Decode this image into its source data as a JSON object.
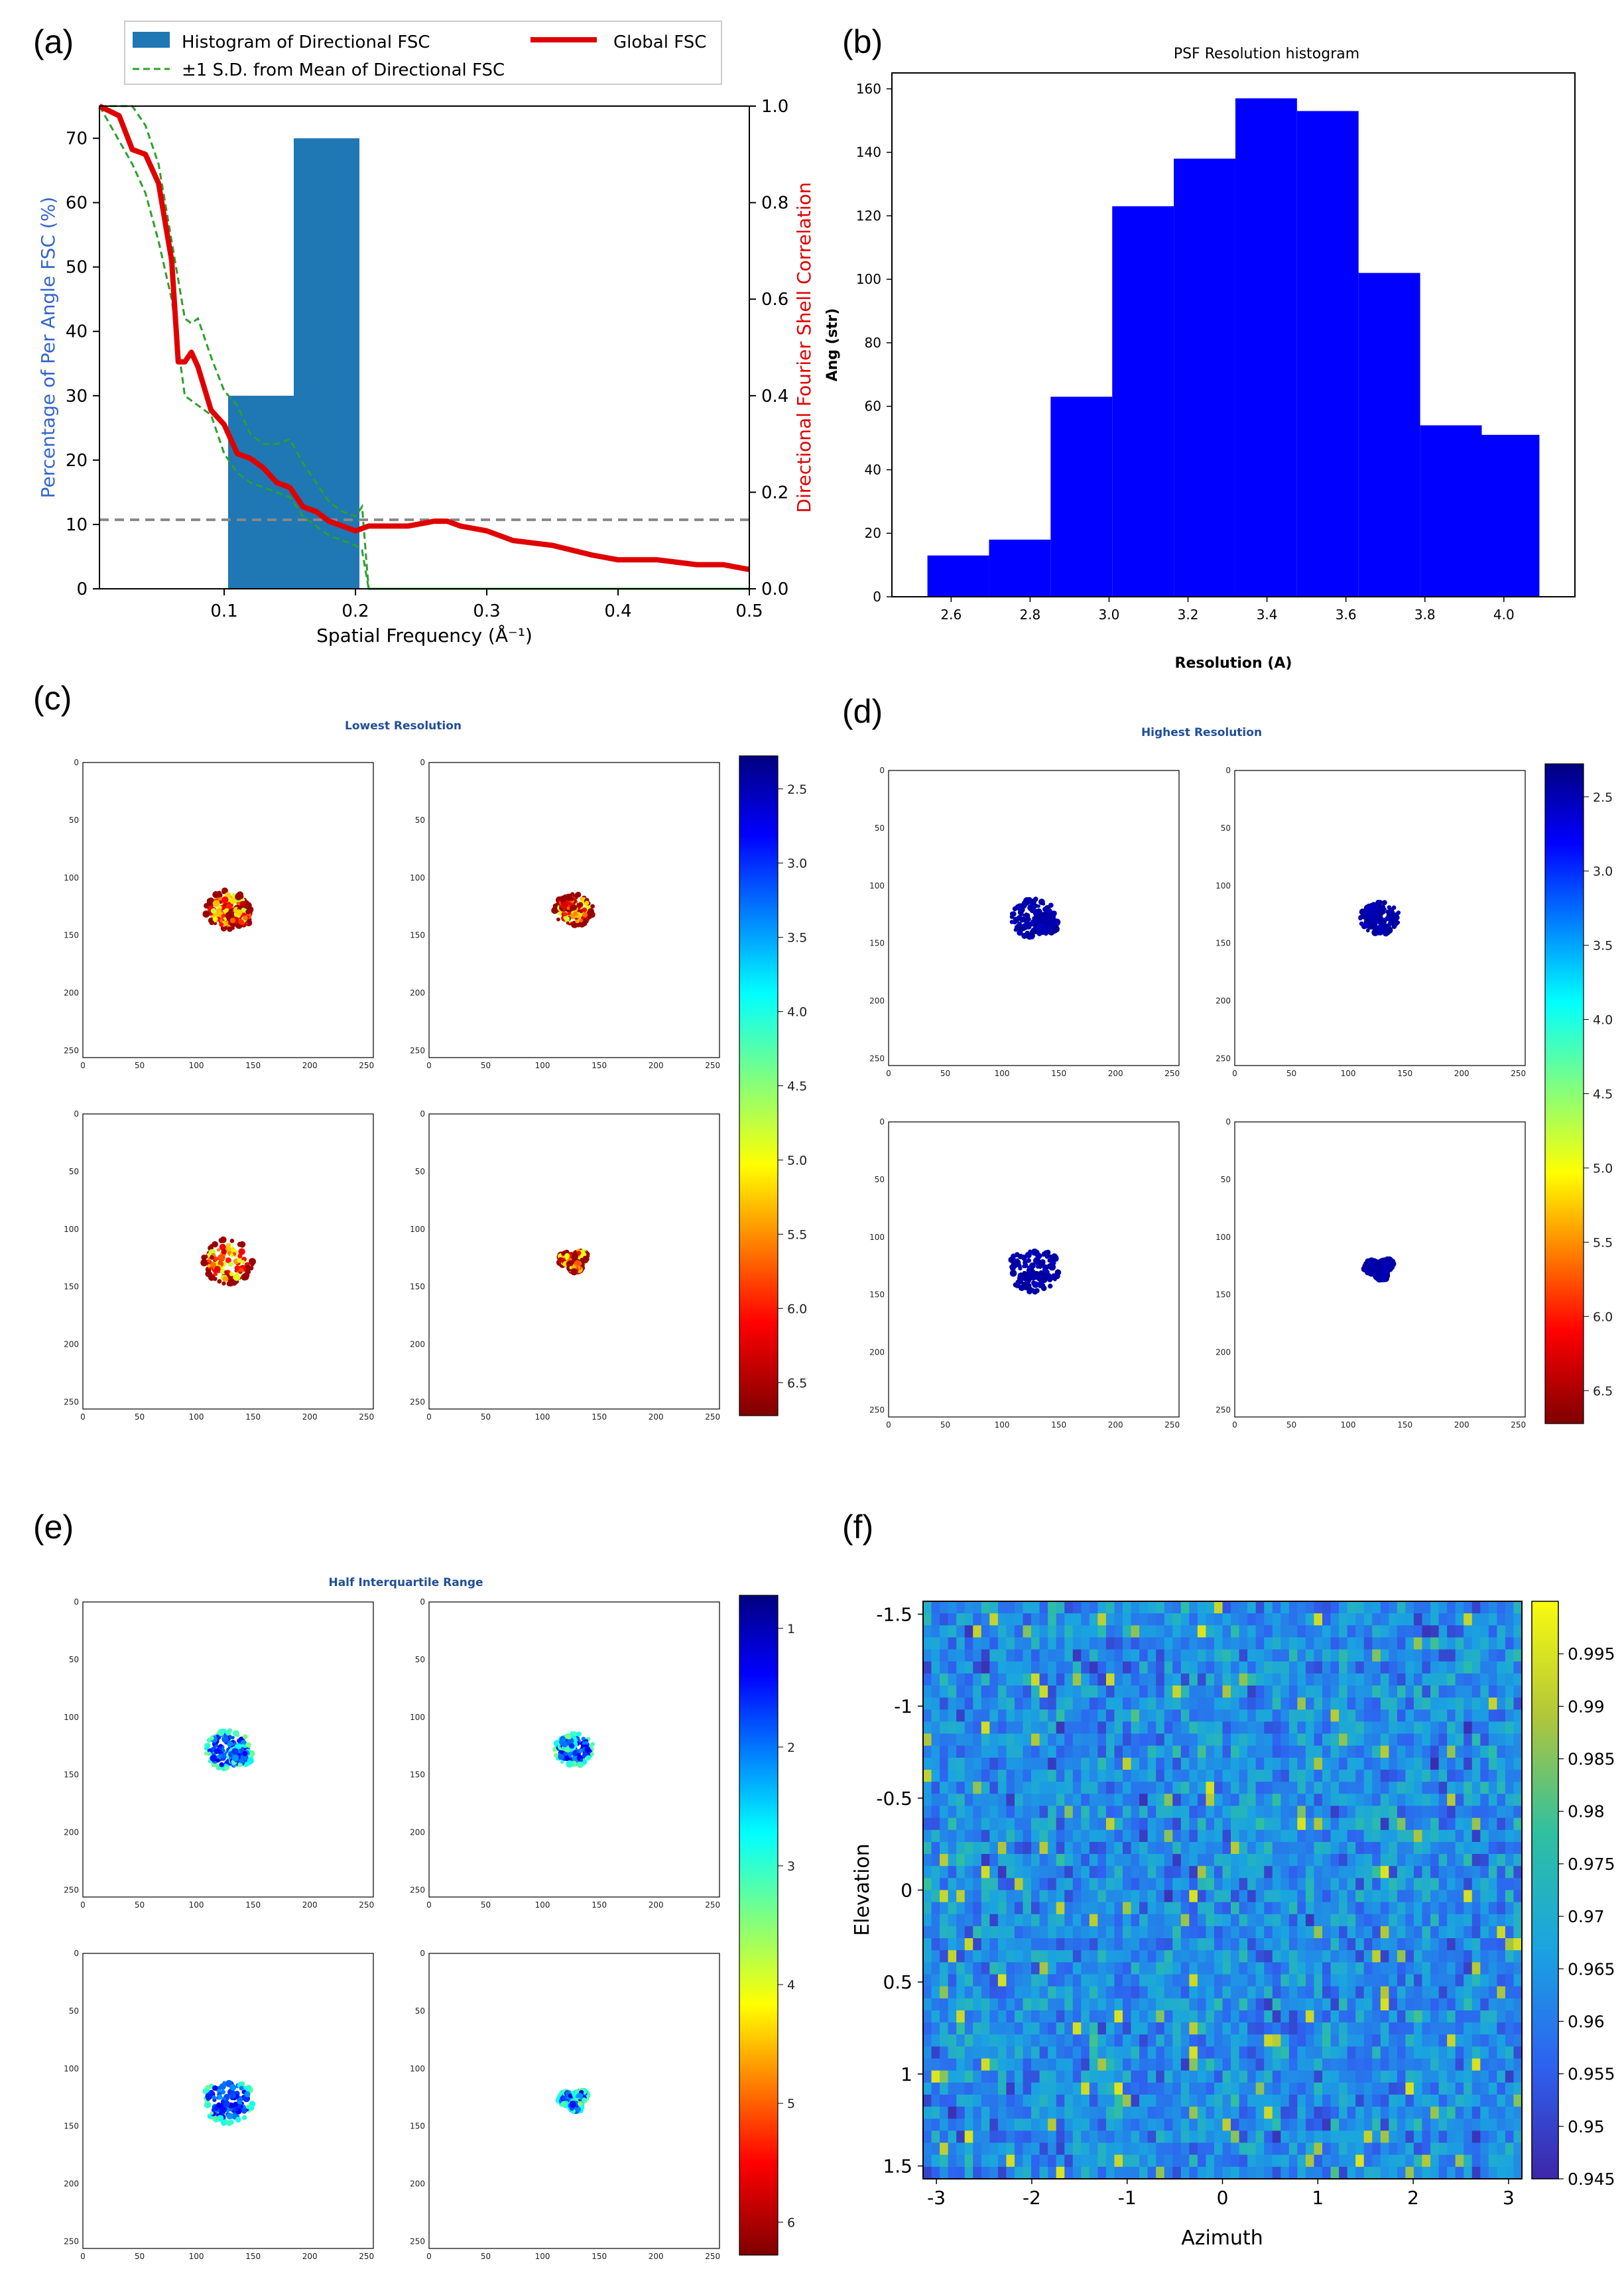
{
  "panels": {
    "a": "(a)",
    "b": "(b)",
    "c": "(c)",
    "d": "(d)",
    "e": "(e)",
    "f": "(f)"
  },
  "colors": {
    "hist_blue": "#1f77b4",
    "global_red": "#e00000",
    "sd_green": "#2ca02c",
    "psf_blue": "#0000ff",
    "axis_blue": "#3366cc",
    "axis_red": "#e00000",
    "title_navy": "#1f4e99"
  },
  "chart_data": [
    {
      "id": "a",
      "type": "bar+line",
      "title": "",
      "xlabel": "Spatial Frequency (Å⁻¹)",
      "ylabel_left": "Percentage of Per Angle FSC (%)",
      "ylabel_right": "Directional Fourier Shell Correlation",
      "xlim": [
        0.005,
        0.5
      ],
      "ylim_left": [
        0,
        75
      ],
      "ylim_right": [
        0,
        1.0
      ],
      "xticks": [
        0.1,
        0.2,
        0.3,
        0.4,
        0.5
      ],
      "xtick_labels": [
        "0.1",
        "0.2",
        "0.3",
        "0.4",
        "0.5"
      ],
      "yticks_left": [
        0,
        10,
        20,
        30,
        40,
        50,
        60,
        70
      ],
      "yticks_left_labels": [
        "0",
        "10",
        "20",
        "30",
        "40",
        "50",
        "60",
        "70"
      ],
      "yticks_right": [
        0.0,
        0.2,
        0.4,
        0.6,
        0.8,
        1.0
      ],
      "yticks_right_labels": [
        "0.0",
        "0.2",
        "0.4",
        "0.6",
        "0.8",
        "1.0"
      ],
      "histogram": {
        "name": "Histogram of Directional FSC",
        "bins": [
          [
            0.103,
            0.153,
            30
          ],
          [
            0.153,
            0.203,
            70
          ]
        ]
      },
      "threshold_line": {
        "y_right": 0.143
      },
      "global_fsc": {
        "name": "Global FSC",
        "x": [
          0.005,
          0.02,
          0.03,
          0.04,
          0.05,
          0.06,
          0.065,
          0.07,
          0.075,
          0.08,
          0.09,
          0.1,
          0.11,
          0.12,
          0.13,
          0.14,
          0.15,
          0.16,
          0.17,
          0.18,
          0.19,
          0.2,
          0.21,
          0.22,
          0.24,
          0.26,
          0.27,
          0.28,
          0.3,
          0.32,
          0.35,
          0.38,
          0.4,
          0.43,
          0.46,
          0.48,
          0.5
        ],
        "y": [
          1.0,
          0.98,
          0.91,
          0.9,
          0.84,
          0.68,
          0.47,
          0.47,
          0.49,
          0.46,
          0.37,
          0.34,
          0.28,
          0.27,
          0.25,
          0.22,
          0.21,
          0.17,
          0.16,
          0.14,
          0.13,
          0.12,
          0.13,
          0.13,
          0.13,
          0.14,
          0.14,
          0.13,
          0.12,
          0.1,
          0.09,
          0.07,
          0.06,
          0.06,
          0.05,
          0.05,
          0.04
        ]
      },
      "sd_upper": {
        "name": "±1 S.D. from Mean of Directional FSC",
        "x": [
          0.005,
          0.03,
          0.04,
          0.05,
          0.06,
          0.07,
          0.075,
          0.08,
          0.09,
          0.1,
          0.11,
          0.12,
          0.13,
          0.14,
          0.15,
          0.16,
          0.17,
          0.18,
          0.19,
          0.2,
          0.205,
          0.21,
          0.5
        ],
        "y": [
          1.0,
          1.0,
          0.96,
          0.88,
          0.72,
          0.56,
          0.55,
          0.56,
          0.48,
          0.41,
          0.38,
          0.32,
          0.3,
          0.3,
          0.31,
          0.26,
          0.22,
          0.18,
          0.16,
          0.15,
          0.17,
          0.0,
          0.0
        ]
      },
      "sd_lower": {
        "name": "±1 S.D. from Mean of Directional FSC",
        "x": [
          0.005,
          0.03,
          0.04,
          0.05,
          0.06,
          0.07,
          0.08,
          0.09,
          0.1,
          0.11,
          0.12,
          0.13,
          0.14,
          0.15,
          0.16,
          0.17,
          0.18,
          0.19,
          0.2,
          0.205,
          0.21,
          0.5
        ],
        "y": [
          1.0,
          0.88,
          0.82,
          0.72,
          0.6,
          0.4,
          0.38,
          0.36,
          0.28,
          0.24,
          0.22,
          0.21,
          0.2,
          0.19,
          0.15,
          0.13,
          0.11,
          0.1,
          0.09,
          0.08,
          0.0,
          0.0
        ]
      },
      "legend": [
        "Histogram of Directional FSC",
        "Global FSC",
        "±1 S.D. from Mean of Directional FSC"
      ]
    },
    {
      "id": "b",
      "type": "bar",
      "title": "PSF Resolution histogram",
      "xlabel": "Resolution (A)",
      "ylabel": "Ang (str)",
      "xlim": [
        2.45,
        4.18
      ],
      "ylim": [
        0,
        165
      ],
      "xticks": [
        2.6,
        2.8,
        3.0,
        3.2,
        3.4,
        3.6,
        3.8,
        4.0
      ],
      "xtick_labels": [
        "2.6",
        "2.8",
        "3.0",
        "3.2",
        "3.4",
        "3.6",
        "3.8",
        "4.0"
      ],
      "yticks": [
        0,
        20,
        40,
        60,
        80,
        100,
        120,
        140,
        160
      ],
      "ytick_labels": [
        "0",
        "20",
        "40",
        "60",
        "80",
        "100",
        "120",
        "140",
        "160"
      ],
      "bin_edges": [
        2.54,
        2.696,
        2.852,
        3.008,
        3.164,
        3.32,
        3.476,
        3.632,
        3.788,
        3.944,
        4.09
      ],
      "values": [
        13,
        18,
        63,
        123,
        138,
        157,
        153,
        102,
        54,
        51
      ]
    },
    {
      "id": "c",
      "type": "heatmap",
      "title": "Lowest Resolution",
      "colorbar_ticks": [
        "2.5",
        "3.0",
        "3.5",
        "4.0",
        "4.5",
        "5.0",
        "5.5",
        "6.0",
        "6.5"
      ],
      "axis_ticks": [
        "0",
        "50",
        "100",
        "150",
        "200",
        "250"
      ]
    },
    {
      "id": "d",
      "type": "heatmap",
      "title": "Highest Resolution",
      "colorbar_ticks": [
        "2.5",
        "3.0",
        "3.5",
        "4.0",
        "4.5",
        "5.0",
        "5.5",
        "6.0",
        "6.5"
      ],
      "axis_ticks": [
        "0",
        "50",
        "100",
        "150",
        "200",
        "250"
      ]
    },
    {
      "id": "e",
      "type": "heatmap",
      "title": "Half Interquartile Range",
      "colorbar_ticks": [
        "1",
        "2",
        "3",
        "4",
        "5",
        "6"
      ],
      "axis_ticks": [
        "0",
        "50",
        "100",
        "150",
        "200",
        "250"
      ]
    },
    {
      "id": "f",
      "type": "heatmap",
      "title": "",
      "xlabel": "Azimuth",
      "ylabel": "Elevation",
      "xlim": [
        -3.14,
        3.14
      ],
      "ylim": [
        -1.57,
        1.57
      ],
      "xticks": [
        -3,
        -2,
        -1,
        0,
        1,
        2,
        3
      ],
      "xtick_labels": [
        "-3",
        "-2",
        "-1",
        "0",
        "1",
        "2",
        "3"
      ],
      "yticks": [
        -1.5,
        -1,
        -0.5,
        0,
        0.5,
        1,
        1.5
      ],
      "ytick_labels": [
        "-1.5",
        "-1",
        "-0.5",
        "0",
        "0.5",
        "1",
        "1.5"
      ],
      "colorbar_ticks": [
        "0.995",
        "0.99",
        "0.985",
        "0.98",
        "0.975",
        "0.97",
        "0.965",
        "0.96",
        "0.955",
        "0.95",
        "0.945"
      ],
      "value_range": [
        0.945,
        1.0
      ],
      "grid": [
        72,
        48
      ]
    }
  ]
}
